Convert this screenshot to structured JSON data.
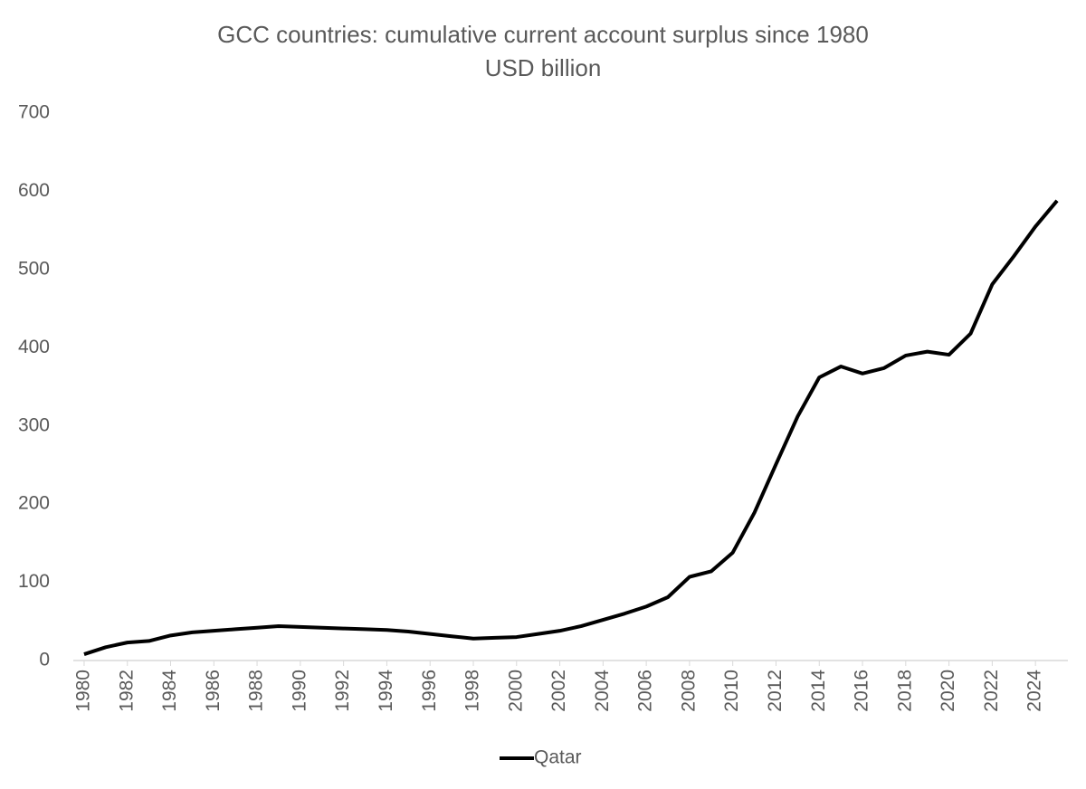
{
  "chart_data": {
    "type": "line",
    "title": "GCC countries: cumulative current account surplus since 1980",
    "subtitle": "USD billion",
    "x": [
      1980,
      1981,
      1982,
      1983,
      1984,
      1985,
      1986,
      1987,
      1988,
      1989,
      1990,
      1991,
      1992,
      1993,
      1994,
      1995,
      1996,
      1997,
      1998,
      1999,
      2000,
      2001,
      2002,
      2003,
      2004,
      2005,
      2006,
      2007,
      2008,
      2009,
      2010,
      2011,
      2012,
      2013,
      2014,
      2015,
      2016,
      2017,
      2018,
      2019,
      2020,
      2021,
      2022,
      2023,
      2024,
      2025
    ],
    "series": [
      {
        "name": "Qatar",
        "color": "#000000",
        "values": [
          8,
          17,
          23,
          25,
          32,
          36,
          38,
          40,
          42,
          44,
          43,
          42,
          41,
          40,
          39,
          37,
          34,
          31,
          28,
          29,
          30,
          34,
          38,
          44,
          52,
          60,
          69,
          81,
          107,
          114,
          138,
          189,
          251,
          312,
          362,
          376,
          367,
          374,
          390,
          395,
          391,
          418,
          481,
          517,
          555,
          588
        ]
      }
    ],
    "xlim": [
      1979.5,
      2025.5
    ],
    "xticks": [
      1980,
      1982,
      1984,
      1986,
      1988,
      1990,
      1992,
      1994,
      1996,
      1998,
      2000,
      2002,
      2004,
      2006,
      2008,
      2010,
      2012,
      2014,
      2016,
      2018,
      2020,
      2022,
      2024
    ],
    "ylim": [
      0,
      700
    ],
    "yticks": [
      0,
      100,
      200,
      300,
      400,
      500,
      600,
      700
    ],
    "grid": false,
    "legend": "bottom"
  }
}
